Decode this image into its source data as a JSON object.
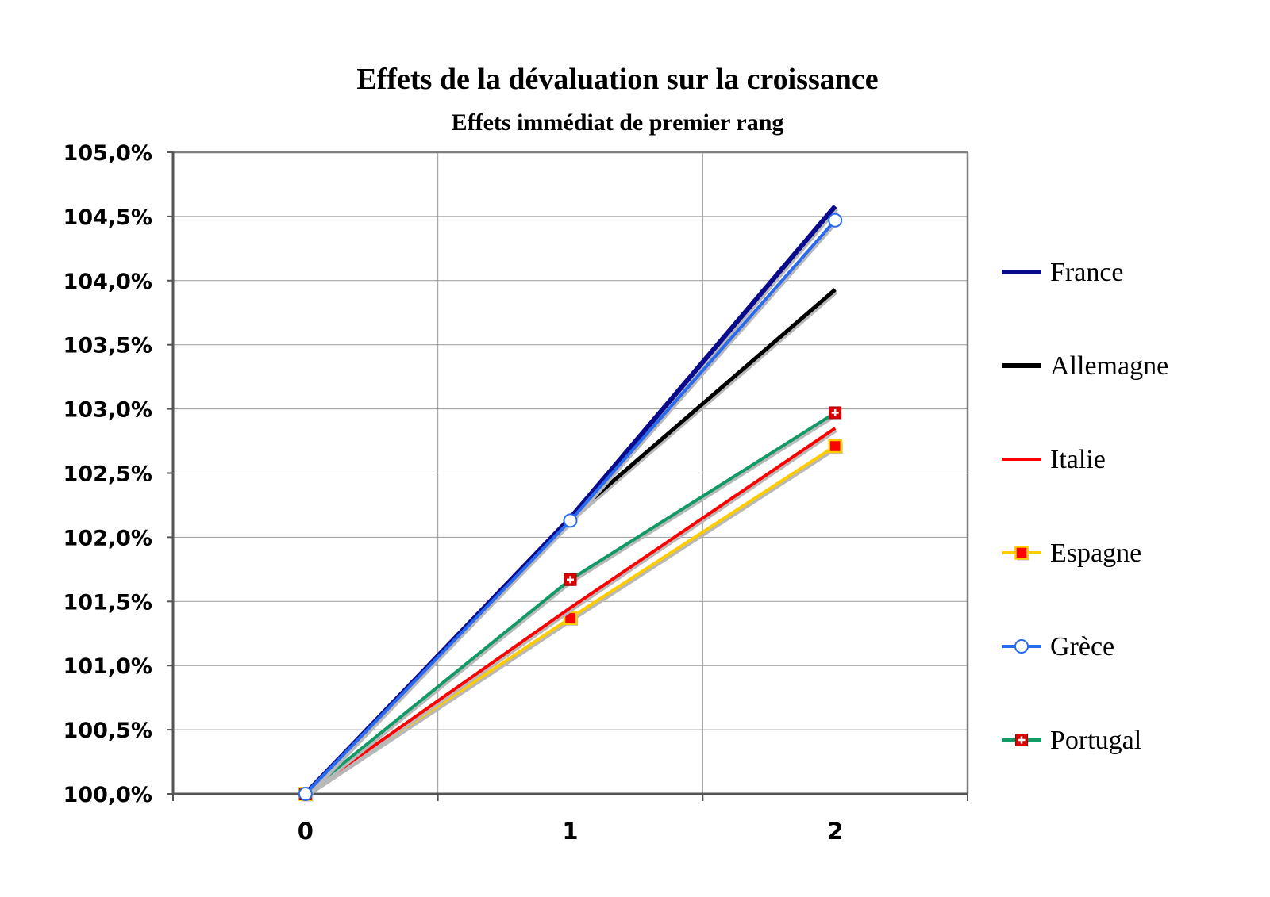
{
  "chart_data": {
    "type": "line",
    "title": "Effets de la dévaluation sur la croissance",
    "subtitle": "Effets immédiat de premier rang",
    "xlabel": "",
    "ylabel": "",
    "x": [
      0,
      1,
      2
    ],
    "x_tick_labels": [
      "0",
      "1",
      "2"
    ],
    "xlim": [
      -0.5,
      2.5
    ],
    "ylim": [
      100.0,
      105.0
    ],
    "y_ticks": [
      100.0,
      100.5,
      101.0,
      101.5,
      102.0,
      102.5,
      103.0,
      103.5,
      104.0,
      104.5,
      105.0
    ],
    "y_tick_labels": [
      "100,0%",
      "100,5%",
      "101,0%",
      "101,5%",
      "102,0%",
      "102,5%",
      "103,0%",
      "103,5%",
      "104,0%",
      "104,5%",
      "105,0%"
    ],
    "grid": true,
    "legend_position": "right",
    "series": [
      {
        "name": "France",
        "values": [
          100.0,
          102.15,
          104.58
        ],
        "color": "#0a0a8c",
        "marker": "none"
      },
      {
        "name": "Allemagne",
        "values": [
          100.0,
          102.15,
          103.93
        ],
        "color": "#000000",
        "marker": "none"
      },
      {
        "name": "Italie",
        "values": [
          100.0,
          101.45,
          102.85
        ],
        "color": "#ff0000",
        "marker": "none"
      },
      {
        "name": "Espagne",
        "values": [
          100.0,
          101.37,
          102.71
        ],
        "color": "#ffcc00",
        "marker": "square"
      },
      {
        "name": "Grèce",
        "values": [
          100.0,
          102.13,
          104.47
        ],
        "color": "#2a6aef",
        "marker": "circle"
      },
      {
        "name": "Portugal",
        "values": [
          100.0,
          101.67,
          102.97
        ],
        "color": "#119966",
        "marker": "cross"
      }
    ]
  }
}
